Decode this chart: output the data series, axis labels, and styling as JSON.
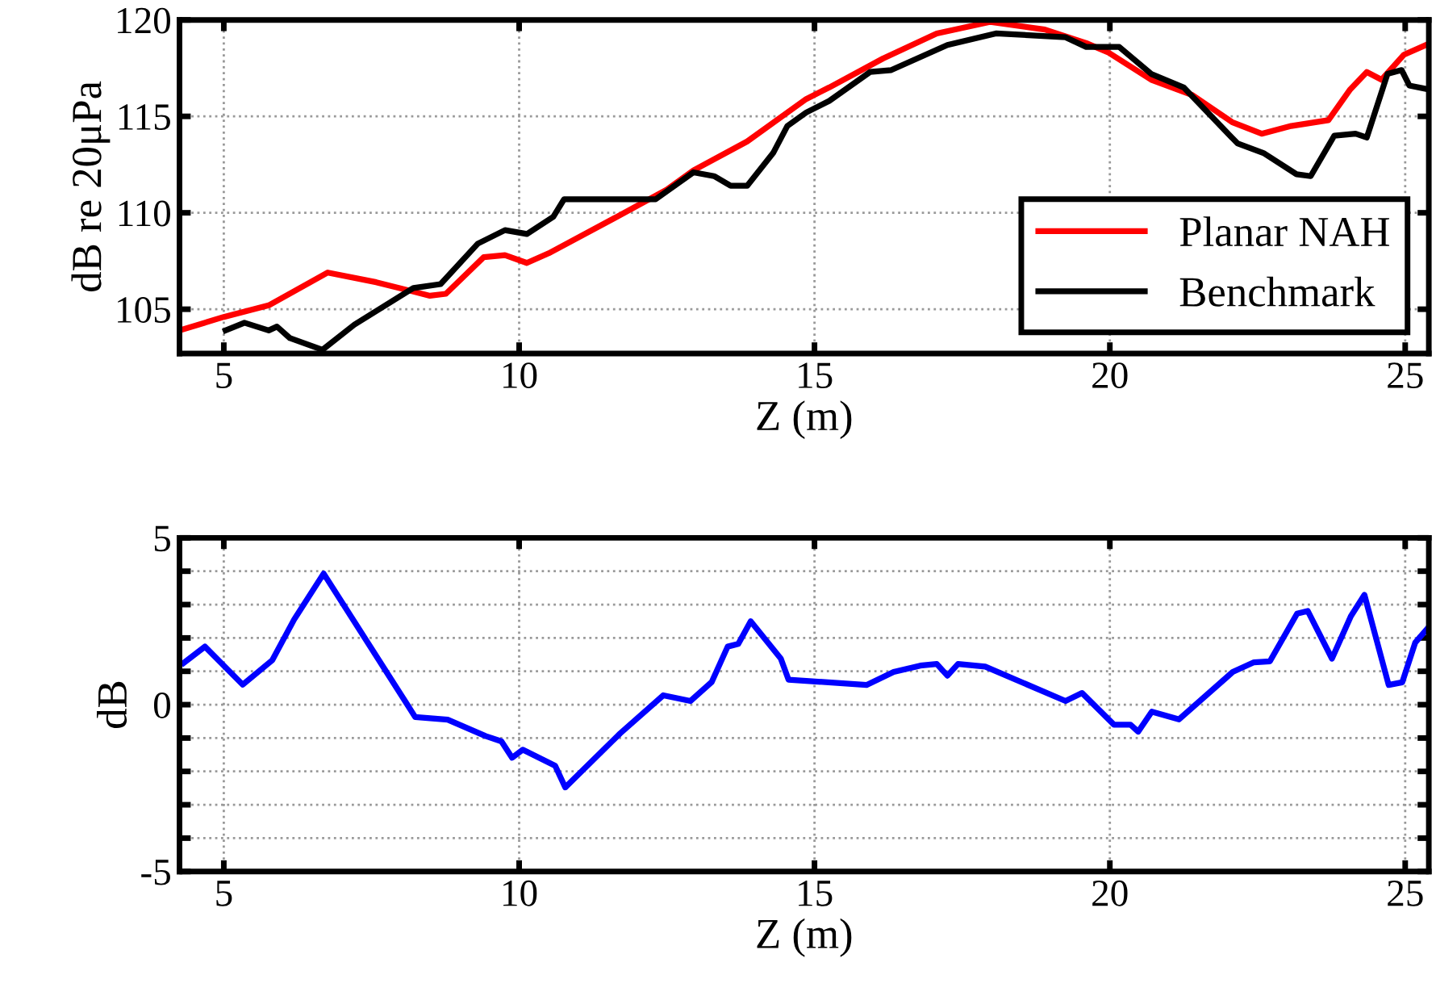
{
  "chart_data": [
    {
      "type": "line",
      "xlabel": "Z (m)",
      "ylabel": "dB re 20μPa",
      "xlim": [
        4.25,
        25.4
      ],
      "ylim": [
        102.7,
        120
      ],
      "xticks": [
        5,
        10,
        15,
        20,
        25
      ],
      "yticks": [
        105,
        110,
        115,
        120
      ],
      "grid": true,
      "legend": "lower right",
      "line_style": "solid",
      "marker": "none",
      "series": [
        {
          "name": "Planar NAH",
          "color": "#ff0000",
          "x": [
            4.25,
            5.0,
            5.76,
            6.76,
            7.58,
            8.49,
            8.76,
            9.4,
            9.76,
            10.13,
            10.5,
            11.6,
            12.5,
            12.95,
            13.86,
            14.86,
            15.25,
            16.16,
            17.07,
            17.98,
            18.9,
            19.6,
            19.98,
            20.7,
            21.4,
            22.07,
            22.57,
            23.07,
            23.7,
            24.07,
            24.35,
            24.6,
            24.98,
            25.35
          ],
          "values": [
            103.9,
            104.6,
            105.2,
            106.9,
            106.4,
            105.7,
            105.8,
            107.7,
            107.8,
            107.4,
            107.9,
            109.7,
            111.2,
            112.2,
            113.7,
            115.9,
            116.5,
            118.0,
            119.3,
            119.9,
            119.5,
            118.8,
            118.3,
            116.9,
            116.1,
            114.7,
            114.1,
            114.5,
            114.8,
            116.4,
            117.3,
            116.9,
            118.2,
            118.7
          ]
        },
        {
          "name": "Benchmark",
          "color": "#000000",
          "x": [
            5.03,
            5.35,
            5.76,
            5.9,
            6.12,
            6.67,
            7.21,
            8.21,
            8.67,
            9.3,
            9.76,
            10.13,
            10.58,
            10.76,
            12.31,
            12.95,
            13.3,
            13.58,
            13.86,
            14.3,
            14.54,
            14.86,
            15.25,
            15.94,
            16.3,
            17.25,
            18.07,
            19.25,
            19.6,
            20.16,
            20.7,
            21.25,
            22.16,
            22.6,
            23.16,
            23.4,
            23.8,
            24.16,
            24.35,
            24.7,
            24.94,
            25.07,
            25.39
          ],
          "values": [
            103.9,
            104.3,
            103.9,
            104.1,
            103.5,
            102.9,
            104.2,
            106.1,
            106.3,
            108.4,
            109.1,
            108.9,
            109.8,
            110.7,
            110.7,
            112.1,
            111.9,
            111.4,
            111.4,
            113.1,
            114.5,
            115.2,
            115.8,
            117.3,
            117.4,
            118.7,
            119.3,
            119.1,
            118.6,
            118.6,
            117.2,
            116.5,
            113.6,
            113.1,
            112.0,
            111.9,
            114.0,
            114.1,
            113.9,
            117.2,
            117.4,
            116.6,
            116.4
          ]
        }
      ]
    },
    {
      "type": "line",
      "xlabel": "Z (m)",
      "ylabel": "dB",
      "xlim": [
        4.25,
        25.4
      ],
      "ylim": [
        -5,
        5
      ],
      "xticks": [
        5,
        10,
        15,
        20,
        25
      ],
      "yticks": [
        -5,
        {
          "value": -4,
          "label": null
        },
        {
          "value": -3,
          "label": null
        },
        {
          "value": -2,
          "label": null
        },
        {
          "value": -1,
          "label": null
        },
        0,
        {
          "value": 1,
          "label": null
        },
        {
          "value": 2,
          "label": null
        },
        {
          "value": 3,
          "label": null
        },
        {
          "value": 4,
          "label": null
        },
        5
      ],
      "grid": true,
      "line_style": "solid",
      "marker": "none",
      "series": [
        {
          "color": "#0000ff",
          "x": [
            4.32,
            4.68,
            5.32,
            5.82,
            6.19,
            6.69,
            8.24,
            8.79,
            9.43,
            9.7,
            9.88,
            10.06,
            10.61,
            10.78,
            11.71,
            12.44,
            12.9,
            13.26,
            13.53,
            13.71,
            13.92,
            14.43,
            14.56,
            15.88,
            16.34,
            16.79,
            17.07,
            17.25,
            17.43,
            17.89,
            19.25,
            19.53,
            20.07,
            20.35,
            20.48,
            20.71,
            21.17,
            22.08,
            22.44,
            22.71,
            23.17,
            23.35,
            23.76,
            24.08,
            24.31,
            24.72,
            24.95,
            25.17,
            25.36
          ],
          "values": [
            1.25,
            1.74,
            0.6,
            1.33,
            2.55,
            3.93,
            -0.37,
            -0.45,
            -0.94,
            -1.1,
            -1.59,
            -1.35,
            -1.83,
            -2.48,
            -0.86,
            0.28,
            0.11,
            0.68,
            1.74,
            1.82,
            2.5,
            1.38,
            0.75,
            0.59,
            0.98,
            1.17,
            1.22,
            0.87,
            1.22,
            1.14,
            0.11,
            0.35,
            -0.6,
            -0.6,
            -0.81,
            -0.21,
            -0.44,
            0.98,
            1.27,
            1.3,
            2.73,
            2.81,
            1.38,
            2.65,
            3.29,
            0.59,
            0.67,
            1.86,
            2.25
          ]
        }
      ]
    }
  ]
}
